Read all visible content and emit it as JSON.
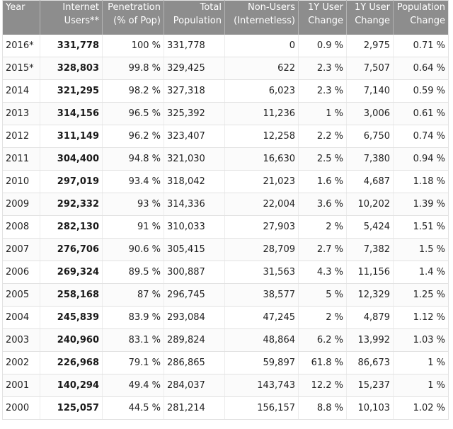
{
  "table": {
    "headers": [
      [
        "Year"
      ],
      [
        "Internet",
        "Users**"
      ],
      [
        "Penetration",
        "(% of Pop)"
      ],
      [
        "Total",
        "Population"
      ],
      [
        "Non-Users",
        "(Internetless)"
      ],
      [
        "1Y User",
        "Change"
      ],
      [
        "1Y User",
        "Change"
      ],
      [
        "Population",
        "Change"
      ]
    ],
    "rows": [
      [
        "2016*",
        "331,778",
        "100 %",
        "331,778",
        "0",
        "0.9 %",
        "2,975",
        "0.71 %"
      ],
      [
        "2015*",
        "328,803",
        "99.8 %",
        "329,425",
        "622",
        "2.3 %",
        "7,507",
        "0.64 %"
      ],
      [
        "2014",
        "321,295",
        "98.2 %",
        "327,318",
        "6,023",
        "2.3 %",
        "7,140",
        "0.59 %"
      ],
      [
        "2013",
        "314,156",
        "96.5 %",
        "325,392",
        "11,236",
        "1 %",
        "3,006",
        "0.61 %"
      ],
      [
        "2012",
        "311,149",
        "96.2 %",
        "323,407",
        "12,258",
        "2.2 %",
        "6,750",
        "0.74 %"
      ],
      [
        "2011",
        "304,400",
        "94.8 %",
        "321,030",
        "16,630",
        "2.5 %",
        "7,380",
        "0.94 %"
      ],
      [
        "2010",
        "297,019",
        "93.4 %",
        "318,042",
        "21,023",
        "1.6 %",
        "4,687",
        "1.18 %"
      ],
      [
        "2009",
        "292,332",
        "93 %",
        "314,336",
        "22,004",
        "3.6 %",
        "10,202",
        "1.39 %"
      ],
      [
        "2008",
        "282,130",
        "91 %",
        "310,033",
        "27,903",
        "2 %",
        "5,424",
        "1.51 %"
      ],
      [
        "2007",
        "276,706",
        "90.6 %",
        "305,415",
        "28,709",
        "2.7 %",
        "7,382",
        "1.5 %"
      ],
      [
        "2006",
        "269,324",
        "89.5 %",
        "300,887",
        "31,563",
        "4.3 %",
        "11,156",
        "1.4 %"
      ],
      [
        "2005",
        "258,168",
        "87 %",
        "296,745",
        "38,577",
        "5 %",
        "12,329",
        "1.25 %"
      ],
      [
        "2004",
        "245,839",
        "83.9 %",
        "293,084",
        "47,245",
        "2 %",
        "4,879",
        "1.12 %"
      ],
      [
        "2003",
        "240,960",
        "83.1 %",
        "289,824",
        "48,864",
        "6.2 %",
        "13,992",
        "1.03 %"
      ],
      [
        "2002",
        "226,968",
        "79.1 %",
        "286,865",
        "59,897",
        "61.8 %",
        "86,673",
        "1 %"
      ],
      [
        "2001",
        "140,294",
        "49.4 %",
        "284,037",
        "143,743",
        "12.2 %",
        "15,237",
        "1 %"
      ],
      [
        "2000",
        "125,057",
        "44.5 %",
        "281,214",
        "156,157",
        "8.8 %",
        "10,103",
        "1.02 %"
      ]
    ],
    "colors": {
      "header_bg": "#8d8d8d",
      "header_text": "#ffffff",
      "row_border": "#e2e2e2"
    }
  }
}
